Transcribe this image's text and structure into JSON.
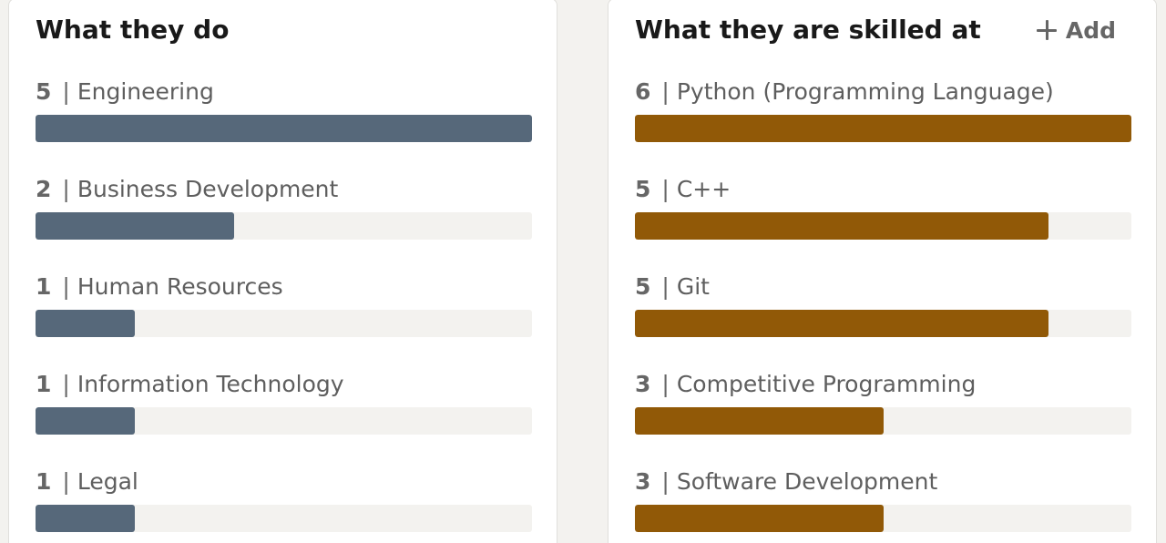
{
  "functions_card": {
    "title": "What they do",
    "max": 5,
    "items": [
      {
        "count": "5",
        "label": "Engineering",
        "value": 5
      },
      {
        "count": "2",
        "label": "Business Development",
        "value": 2
      },
      {
        "count": "1",
        "label": "Human Resources",
        "value": 1
      },
      {
        "count": "1",
        "label": "Information Technology",
        "value": 1
      },
      {
        "count": "1",
        "label": "Legal",
        "value": 1
      }
    ]
  },
  "skills_card": {
    "title": "What they are skilled at",
    "add_label": "Add",
    "max": 6,
    "items": [
      {
        "count": "6",
        "label": "Python (Programming Language)",
        "value": 6
      },
      {
        "count": "5",
        "label": "C++",
        "value": 5
      },
      {
        "count": "5",
        "label": "Git",
        "value": 5
      },
      {
        "count": "3",
        "label": "Competitive Programming",
        "value": 3
      },
      {
        "count": "3",
        "label": "Software Development",
        "value": 3
      }
    ]
  },
  "colors": {
    "functions_bar": "#56687a",
    "skills_bar": "#915907",
    "track": "#f3f2ef"
  },
  "icons": {
    "add": "plus-icon"
  }
}
